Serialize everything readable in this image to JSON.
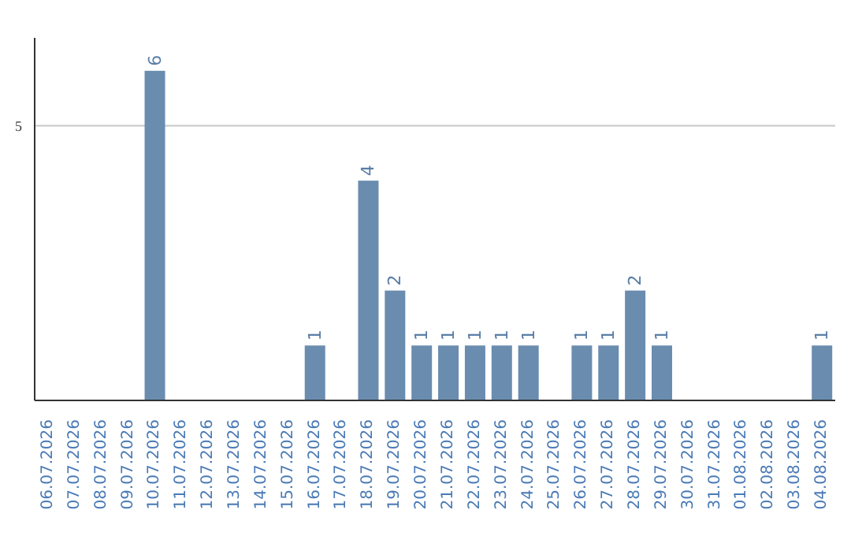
{
  "chart_data": {
    "type": "bar",
    "categories": [
      "06.07.2026",
      "07.07.2026",
      "08.07.2026",
      "09.07.2026",
      "10.07.2026",
      "11.07.2026",
      "12.07.2026",
      "13.07.2026",
      "14.07.2026",
      "15.07.2026",
      "16.07.2026",
      "17.07.2026",
      "18.07.2026",
      "19.07.2026",
      "20.07.2026",
      "21.07.2026",
      "22.07.2026",
      "23.07.2026",
      "24.07.2026",
      "25.07.2026",
      "26.07.2026",
      "27.07.2026",
      "28.07.2026",
      "29.07.2026",
      "30.07.2026",
      "31.07.2026",
      "01.08.2026",
      "02.08.2026",
      "03.08.2026",
      "04.08.2026"
    ],
    "values": [
      0,
      0,
      0,
      0,
      6,
      0,
      0,
      0,
      0,
      0,
      1,
      0,
      4,
      2,
      1,
      1,
      1,
      1,
      1,
      0,
      1,
      1,
      2,
      1,
      0,
      0,
      0,
      0,
      0,
      1
    ],
    "value_labels": [
      null,
      null,
      null,
      null,
      "6",
      null,
      null,
      null,
      null,
      null,
      "1",
      null,
      "4",
      "2",
      "1",
      "1",
      "1",
      "1",
      "1",
      null,
      "1",
      "1",
      "2",
      "1",
      null,
      null,
      null,
      null,
      null,
      "1"
    ],
    "color": "#6a8caf",
    "ylim": [
      0,
      6.6
    ],
    "yticks": [
      5
    ],
    "grid": "y"
  }
}
